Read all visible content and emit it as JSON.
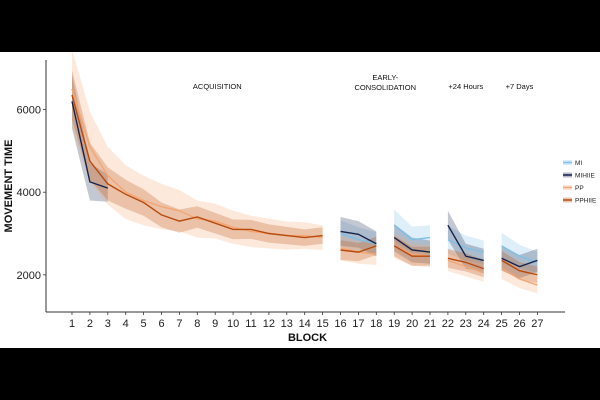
{
  "chart_data": {
    "type": "line",
    "xlabel": "BLOCK",
    "ylabel": "MOVEMENT TIME",
    "x": [
      1,
      2,
      3,
      4,
      5,
      6,
      7,
      8,
      9,
      10,
      11,
      12,
      13,
      14,
      15,
      16,
      17,
      18,
      19,
      20,
      21,
      22,
      23,
      24,
      25,
      26,
      27
    ],
    "ylim": [
      1100,
      7200
    ],
    "yticks": [
      2000,
      4000,
      6000
    ],
    "grid": false,
    "legend": "right",
    "phases": [
      {
        "label": "ACQUISITION",
        "lines": [
          "ACQUISITION"
        ],
        "blocks": [
          1,
          15
        ]
      },
      {
        "label": "EARLY-CONSOLIDATION",
        "lines": [
          "EARLY-",
          "CONSOLIDATION"
        ],
        "blocks": [
          16,
          21
        ]
      },
      {
        "label": "+24 Hours",
        "lines": [
          "+24 Hours"
        ],
        "blocks": [
          22,
          24
        ]
      },
      {
        "label": "+7 Days",
        "lines": [
          "+7 Days"
        ],
        "blocks": [
          25,
          27
        ]
      }
    ],
    "series": [
      {
        "name": "MI",
        "color": "#7fbfe6",
        "segments": [
          {
            "x": [
              16,
              17,
              18
            ],
            "y": [
              3000,
              2850,
              2750
            ],
            "err": [
              320,
              300,
              280
            ]
          },
          {
            "x": [
              19,
              20,
              21
            ],
            "y": [
              3200,
              2850,
              2900
            ],
            "err": [
              380,
              320,
              300
            ]
          },
          {
            "x": [
              22,
              23,
              24
            ],
            "y": [
              2850,
              2650,
              2550
            ],
            "err": [
              340,
              300,
              280
            ]
          },
          {
            "x": [
              25,
              26,
              27
            ],
            "y": [
              2700,
              2450,
              2300
            ],
            "err": [
              320,
              280,
              260
            ]
          }
        ]
      },
      {
        "name": "MIHIIE",
        "color": "#15224a",
        "segments": [
          {
            "x": [
              1,
              2,
              3
            ],
            "y": [
              6200,
              4250,
              4100
            ],
            "err": [
              650,
              450,
              330
            ]
          },
          {
            "x": [
              16,
              17,
              18
            ],
            "y": [
              3050,
              2980,
              2750
            ],
            "err": [
              350,
              320,
              300
            ]
          },
          {
            "x": [
              19,
              20,
              21
            ],
            "y": [
              2900,
              2600,
              2550
            ],
            "err": [
              330,
              300,
              280
            ]
          },
          {
            "x": [
              22,
              23,
              24
            ],
            "y": [
              3200,
              2450,
              2350
            ],
            "err": [
              350,
              300,
              280
            ]
          },
          {
            "x": [
              25,
              26,
              27
            ],
            "y": [
              2400,
              2200,
              2350
            ],
            "err": [
              300,
              280,
              280
            ]
          }
        ]
      },
      {
        "name": "PP",
        "color": "#f3a673",
        "segments": [
          {
            "x": [
              1,
              2,
              3,
              4,
              5,
              6,
              7,
              8,
              9,
              10,
              11,
              12,
              13,
              14,
              15
            ],
            "y": [
              6500,
              5100,
              4400,
              4000,
              3800,
              3650,
              3550,
              3350,
              3300,
              3150,
              3050,
              3000,
              2950,
              2950,
              2900
            ],
            "err": [
              950,
              850,
              700,
              650,
              600,
              550,
              500,
              450,
              420,
              400,
              380,
              360,
              340,
              320,
              300
            ]
          },
          {
            "x": [
              16,
              17,
              18
            ],
            "y": [
              2650,
              2550,
              2500
            ],
            "err": [
              300,
              280,
              260
            ]
          },
          {
            "x": [
              19,
              20,
              21
            ],
            "y": [
              2700,
              2500,
              2450
            ],
            "err": [
              300,
              280,
              260
            ]
          },
          {
            "x": [
              22,
              23,
              24
            ],
            "y": [
              2350,
              2200,
              2050
            ],
            "err": [
              260,
              240,
              220
            ]
          },
          {
            "x": [
              25,
              26,
              27
            ],
            "y": [
              2150,
              1900,
              1750
            ],
            "err": [
              250,
              220,
              200
            ]
          }
        ]
      },
      {
        "name": "PPHIIE",
        "color": "#b84a0c",
        "segments": [
          {
            "x": [
              1,
              2,
              3,
              4,
              5,
              6,
              7,
              8,
              9,
              10,
              11,
              12,
              13,
              14,
              15
            ],
            "y": [
              6350,
              4750,
              4200,
              3950,
              3750,
              3450,
              3300,
              3400,
              3250,
              3100,
              3100,
              3000,
              2950,
              2900,
              2950
            ],
            "err": [
              600,
              450,
              400,
              350,
              320,
              300,
              280,
              260,
              250,
              240,
              230,
              220,
              210,
              200,
              200
            ]
          },
          {
            "x": [
              16,
              17,
              18
            ],
            "y": [
              2600,
              2550,
              2700
            ],
            "err": [
              240,
              220,
              220
            ]
          },
          {
            "x": [
              19,
              20,
              21
            ],
            "y": [
              2700,
              2450,
              2450
            ],
            "err": [
              250,
              230,
              230
            ]
          },
          {
            "x": [
              22,
              23,
              24
            ],
            "y": [
              2400,
              2300,
              2150
            ],
            "err": [
              230,
              220,
              210
            ]
          },
          {
            "x": [
              25,
              26,
              27
            ],
            "y": [
              2350,
              2100,
              2000
            ],
            "err": [
              230,
              210,
              200
            ]
          }
        ]
      }
    ]
  }
}
